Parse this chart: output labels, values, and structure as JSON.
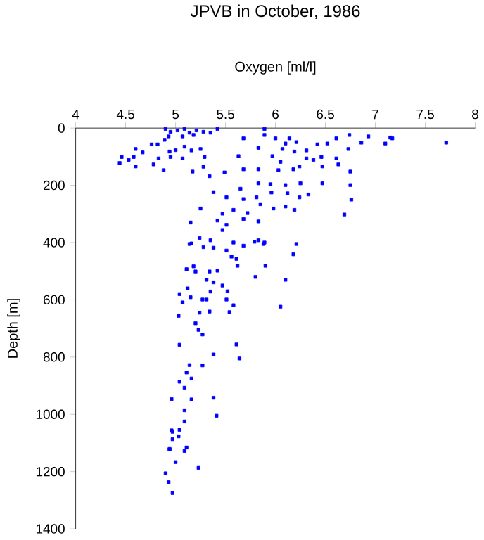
{
  "chart_data": {
    "type": "scatter",
    "title": "JPVB in October, 1986",
    "xlabel": "Oxygen [ml/l]",
    "ylabel": "Depth [m]",
    "x": [
      4.9,
      4.95,
      5.02,
      5.09,
      5.14,
      5.21,
      5.28,
      5.35,
      5.42,
      4.93,
      5.07,
      5.18,
      5.89,
      5.89,
      5.68,
      6.0,
      6.74,
      6.93,
      7.15,
      7.17,
      7.71,
      6.86,
      7.1,
      6.61,
      6.52,
      6.42,
      6.1,
      6.21,
      6.14,
      4.82,
      4.76,
      4.89,
      4.6,
      4.67,
      4.58,
      4.46,
      4.44,
      4.53,
      4.6,
      4.78,
      4.88,
      4.95,
      4.94,
      5.07,
      5.09,
      5.16,
      5.25,
      5.29,
      5.17,
      5.28,
      5.34,
      5.49,
      5.0,
      4.83,
      5.83,
      5.63,
      5.68,
      5.83,
      5.97,
      6.05,
      6.07,
      6.03,
      6.18,
      6.24,
      6.19,
      6.31,
      6.31,
      6.38,
      6.47,
      6.46,
      6.61,
      6.63,
      6.73,
      6.75,
      6.47,
      6.25,
      6.1,
      5.95,
      5.83,
      5.65,
      5.81,
      5.96,
      6.12,
      6.24,
      6.33,
      6.75,
      6.76,
      6.69,
      5.68,
      5.51,
      5.38,
      5.58,
      5.72,
      5.98,
      6.1,
      6.19,
      5.85,
      5.47,
      5.42,
      5.25,
      5.15,
      5.51,
      5.83,
      5.68,
      5.24,
      5.35,
      5.47,
      5.16,
      5.58,
      5.83,
      5.89,
      6.21,
      5.28,
      5.68,
      5.14,
      5.38,
      5.79,
      5.88,
      5.51,
      5.56,
      5.61,
      5.18,
      5.11,
      5.2,
      5.34,
      5.42,
      5.62,
      5.9,
      6.18,
      5.8,
      6.1,
      5.31,
      5.38,
      5.47,
      5.35,
      5.52,
      5.12,
      5.04,
      5.15,
      5.07,
      5.27,
      5.31,
      5.51,
      5.58,
      6.05,
      5.24,
      5.34,
      5.54,
      5.03,
      5.2,
      5.23,
      5.27,
      5.04,
      5.61,
      5.38,
      5.64,
      5.14,
      5.27,
      5.11,
      5.16,
      5.04,
      5.09,
      4.96,
      5.16,
      5.38,
      5.09,
      5.41,
      5.09,
      4.96,
      4.97,
      5.04,
      4.97,
      5.03,
      4.94,
      5.11,
      4.94,
      5.09,
      5.0,
      4.9,
      5.23,
      4.93,
      4.97
    ],
    "values": [
      3,
      13,
      8,
      3,
      16,
      8,
      13,
      16,
      3,
      29,
      29,
      24,
      3,
      24,
      36,
      36,
      24,
      29,
      33,
      36,
      51,
      51,
      54,
      36,
      54,
      57,
      54,
      49,
      36,
      57,
      57,
      41,
      73,
      85,
      101,
      101,
      122,
      111,
      134,
      127,
      147,
      101,
      82,
      106,
      65,
      78,
      73,
      101,
      152,
      135,
      168,
      155,
      77,
      106,
      69,
      98,
      144,
      144,
      98,
      118,
      73,
      147,
      144,
      134,
      82,
      106,
      78,
      111,
      134,
      101,
      106,
      127,
      73,
      152,
      193,
      193,
      199,
      196,
      193,
      212,
      242,
      225,
      228,
      242,
      232,
      199,
      250,
      302,
      248,
      242,
      224,
      286,
      297,
      281,
      274,
      286,
      266,
      299,
      323,
      281,
      330,
      338,
      326,
      318,
      384,
      392,
      356,
      403,
      400,
      392,
      400,
      405,
      416,
      411,
      405,
      418,
      397,
      405,
      428,
      449,
      457,
      483,
      493,
      501,
      501,
      498,
      481,
      481,
      441,
      520,
      530,
      530,
      539,
      550,
      571,
      570,
      560,
      580,
      591,
      609,
      599,
      599,
      599,
      619,
      624,
      645,
      641,
      643,
      656,
      682,
      705,
      721,
      757,
      756,
      791,
      805,
      828,
      829,
      854,
      875,
      886,
      907,
      947,
      948,
      942,
      986,
      1005,
      1025,
      1056,
      1061,
      1054,
      1087,
      1077,
      1121,
      1116,
      1123,
      1128,
      1167,
      1206,
      1187,
      1237,
      1275
    ],
    "color": "#0000ff",
    "marker": "square",
    "xlim": [
      4,
      8
    ],
    "xticks": [
      4,
      4.5,
      5,
      5.5,
      6,
      6.5,
      7,
      7.5,
      8
    ],
    "ylim": [
      1400,
      0
    ],
    "yticks": [
      0,
      200,
      400,
      600,
      800,
      1000,
      1200,
      1400
    ]
  }
}
